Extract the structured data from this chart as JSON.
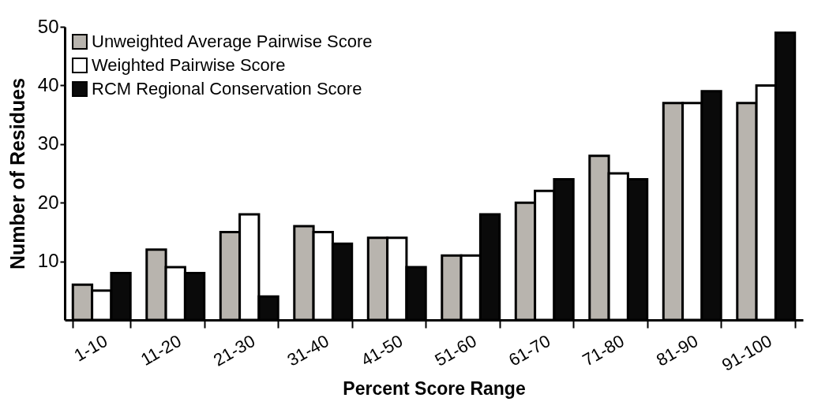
{
  "chart_data": {
    "type": "bar",
    "xlabel": "Percent Score Range",
    "ylabel": "Number of Residues",
    "categories": [
      "1-10",
      "11-20",
      "21-30",
      "31-40",
      "41-50",
      "51-60",
      "61-70",
      "71-80",
      "81-90",
      "91-100"
    ],
    "series": [
      {
        "name": "Unweighted Average Pairwise Score",
        "color": "#b8b4ae",
        "values": [
          6,
          12,
          15,
          16,
          14,
          11,
          20,
          28,
          37,
          37
        ]
      },
      {
        "name": "Weighted Pairwise Score",
        "color": "#ffffff",
        "values": [
          5,
          9,
          18,
          15,
          14,
          11,
          22,
          25,
          37,
          40
        ]
      },
      {
        "name": "RCM Regional Conservation Score",
        "color": "#0a0a0a",
        "values": [
          8,
          8,
          4,
          13,
          9,
          18,
          24,
          24,
          39,
          49
        ]
      }
    ],
    "ylim": [
      0,
      50
    ],
    "yticks": [
      10,
      20,
      30,
      40,
      50
    ],
    "legend": "top left"
  }
}
